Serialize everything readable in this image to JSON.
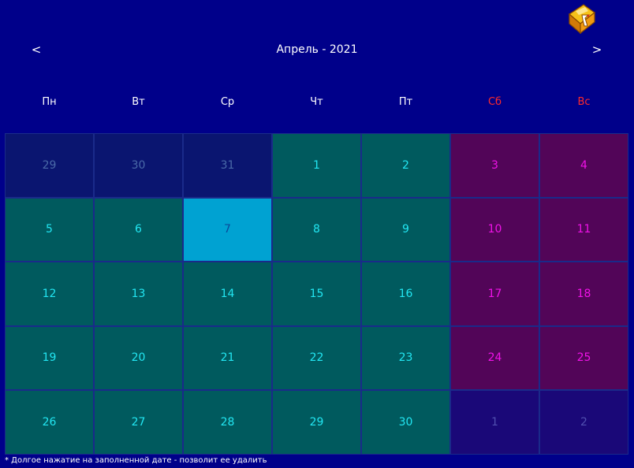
{
  "header": {
    "prev_label": "<",
    "next_label": ">",
    "month_title": "Апрель - 2021"
  },
  "weekdays": [
    "Пн",
    "Вт",
    "Ср",
    "Чт",
    "Пт",
    "Сб",
    "Вс"
  ],
  "weeks": [
    [
      {
        "label": "29",
        "state": "prev-month"
      },
      {
        "label": "30",
        "state": "prev-month"
      },
      {
        "label": "31",
        "state": "prev-month"
      },
      {
        "label": "1",
        "state": "day"
      },
      {
        "label": "2",
        "state": "day"
      },
      {
        "label": "3",
        "state": "weekend"
      },
      {
        "label": "4",
        "state": "weekend"
      }
    ],
    [
      {
        "label": "5",
        "state": "day"
      },
      {
        "label": "6",
        "state": "day"
      },
      {
        "label": "7",
        "state": "today"
      },
      {
        "label": "8",
        "state": "day"
      },
      {
        "label": "9",
        "state": "day"
      },
      {
        "label": "10",
        "state": "weekend"
      },
      {
        "label": "11",
        "state": "weekend"
      }
    ],
    [
      {
        "label": "12",
        "state": "day"
      },
      {
        "label": "13",
        "state": "day"
      },
      {
        "label": "14",
        "state": "day"
      },
      {
        "label": "15",
        "state": "day"
      },
      {
        "label": "16",
        "state": "day"
      },
      {
        "label": "17",
        "state": "weekend"
      },
      {
        "label": "18",
        "state": "weekend"
      }
    ],
    [
      {
        "label": "19",
        "state": "day"
      },
      {
        "label": "20",
        "state": "day"
      },
      {
        "label": "21",
        "state": "day"
      },
      {
        "label": "22",
        "state": "day"
      },
      {
        "label": "23",
        "state": "day"
      },
      {
        "label": "24",
        "state": "weekend"
      },
      {
        "label": "25",
        "state": "weekend"
      }
    ],
    [
      {
        "label": "26",
        "state": "day"
      },
      {
        "label": "27",
        "state": "day"
      },
      {
        "label": "28",
        "state": "day"
      },
      {
        "label": "29",
        "state": "day"
      },
      {
        "label": "30",
        "state": "day"
      },
      {
        "label": "1",
        "state": "next-month"
      },
      {
        "label": "2",
        "state": "next-month"
      }
    ]
  ],
  "footer": {
    "note": "* Долгое нажатие на заполненной дате - позволит ее удалить"
  },
  "icons": {
    "logo": "app-logo-icon"
  },
  "colors": {
    "background": "#00008a",
    "weekday_cell": "#005a5e",
    "weekend_cell": "#520558",
    "today_cell": "#00a2d2",
    "weekend_header": "#ff2a2a"
  }
}
